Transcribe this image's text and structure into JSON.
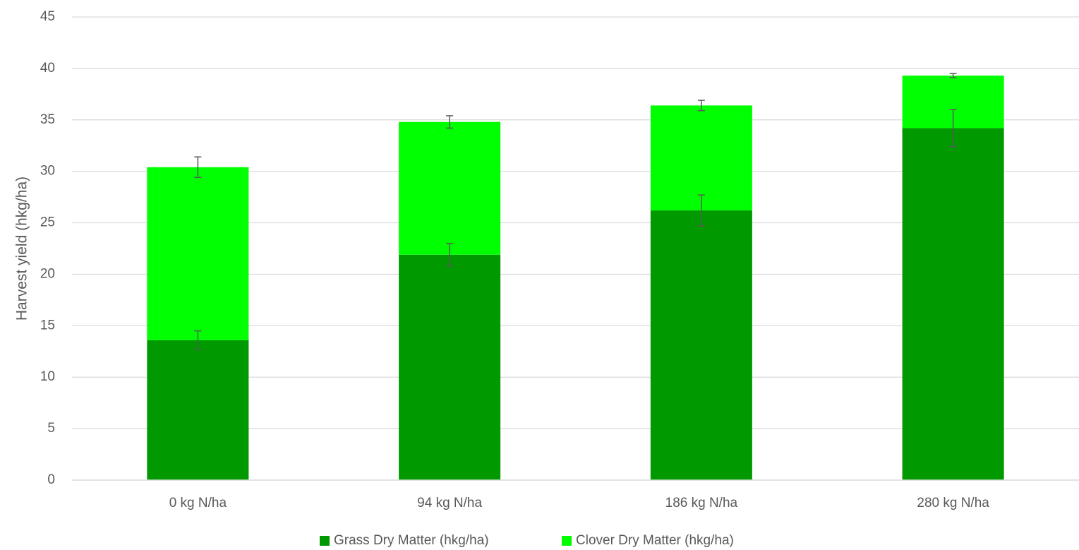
{
  "chart_data": {
    "type": "bar",
    "stacked": true,
    "title": "",
    "xlabel": "",
    "ylabel": "Harvest yield (hkg/ha)",
    "ylim": [
      0,
      45
    ],
    "yticks": [
      "0",
      "5",
      "10",
      "15",
      "20",
      "25",
      "30",
      "35",
      "40",
      "45"
    ],
    "grid": true,
    "legend_position": "bottom",
    "categories": [
      "0 kg N/ha",
      "94 kg N/ha",
      "186 kg N/ha",
      "280 kg N/ha"
    ],
    "series": [
      {
        "name": "Grass Dry Matter (hkg/ha)",
        "color": "#009900",
        "values": [
          13.6,
          21.9,
          26.2,
          34.2
        ],
        "error": [
          0.9,
          1.1,
          1.5,
          1.8
        ]
      },
      {
        "name": "Clover Dry Matter (hkg/ha)",
        "color": "#00ff00",
        "values": [
          16.8,
          12.9,
          10.2,
          5.1
        ],
        "error": [
          1.0,
          0.6,
          0.5,
          0.2
        ]
      }
    ],
    "error_bar_color": "#595959",
    "gridline_color": "#d9d9d9"
  }
}
